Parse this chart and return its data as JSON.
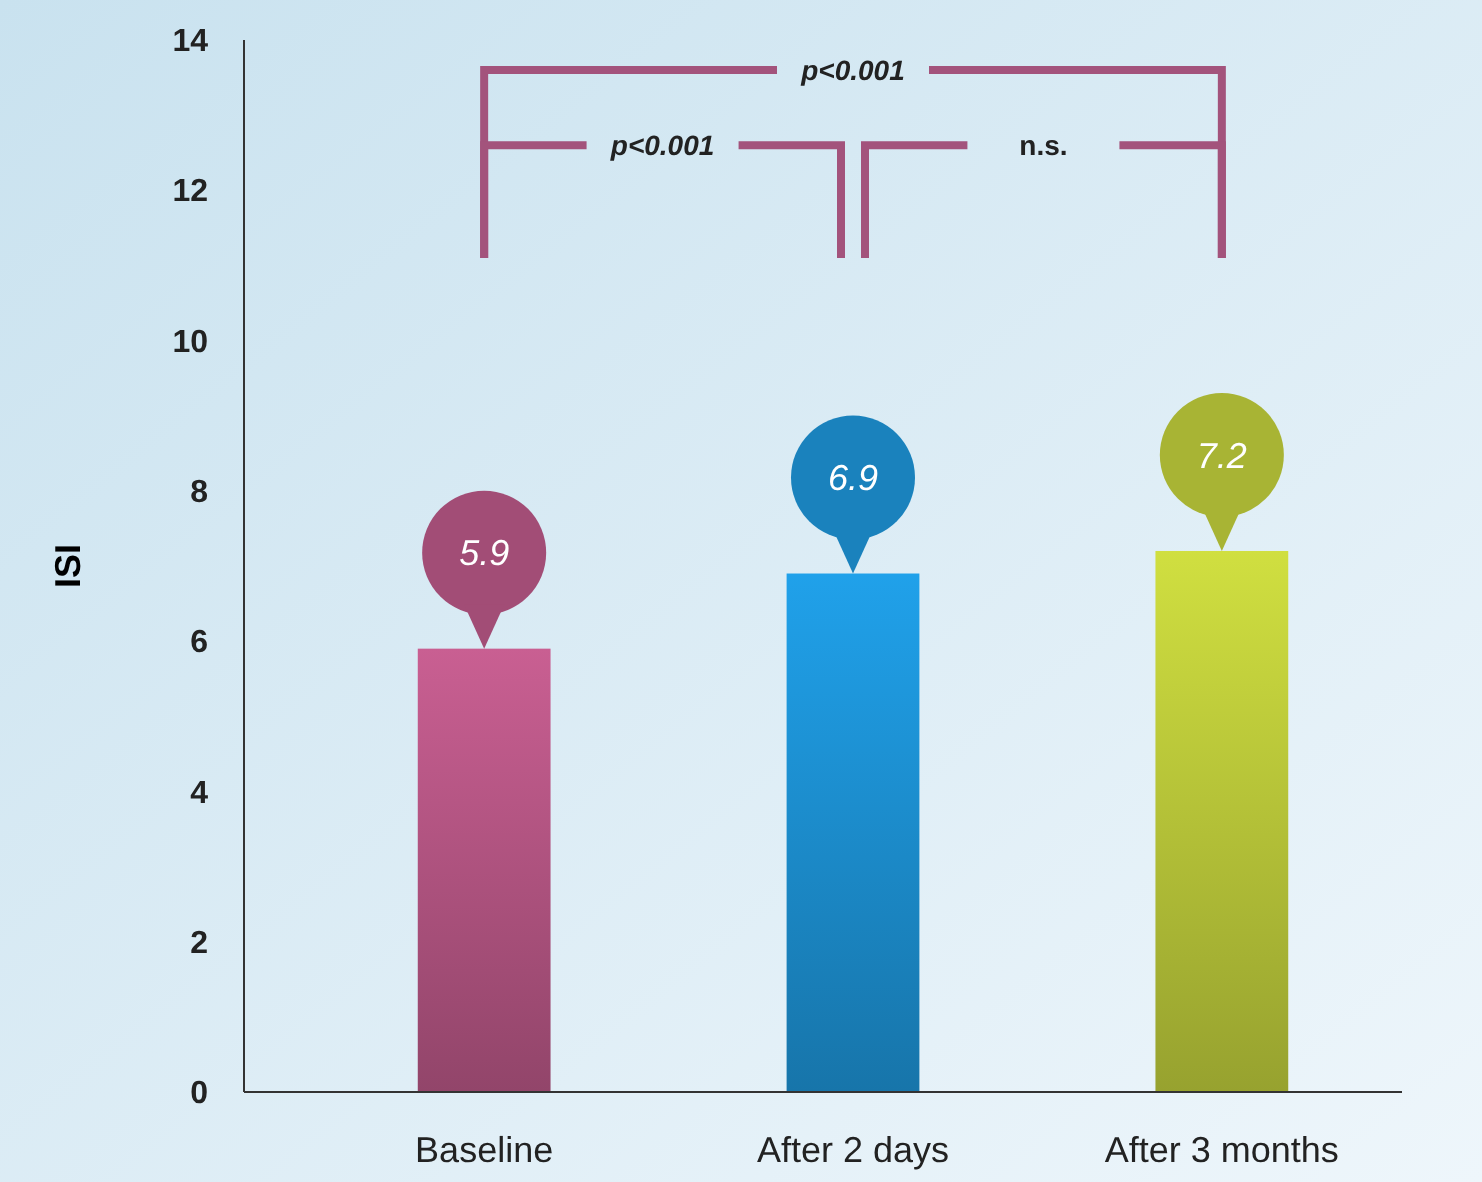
{
  "chart_data": {
    "type": "bar",
    "ylabel": "ISI",
    "categories": [
      "Baseline",
      "After 2 days",
      "After 3 months"
    ],
    "values": [
      5.9,
      6.9,
      7.2
    ],
    "colors": [
      "#a24d76",
      "#1a82bd",
      "#a8b434"
    ],
    "ylim": [
      0,
      14
    ],
    "yticks": [
      0,
      2,
      4,
      6,
      8,
      10,
      12,
      14
    ],
    "grid": false,
    "data_labels": true,
    "annotations": [
      "p<0.001",
      "p<0.001",
      "n.s."
    ]
  }
}
